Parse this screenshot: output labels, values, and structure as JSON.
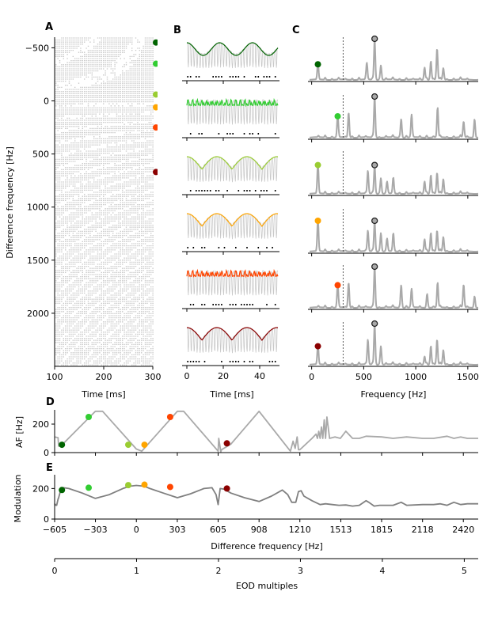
{
  "figure": {
    "panels": [
      "A",
      "B",
      "C",
      "D",
      "E"
    ]
  },
  "colors": {
    "cells": [
      "#006400",
      "#32cd32",
      "#9acd32",
      "#ffa500",
      "#ff4500",
      "#8b0000"
    ],
    "trace_gray": "#a9a9a9",
    "modulation_gray": "#808080",
    "raster_gray": "#c8c8c8",
    "peak_marker_fill": "#a9a9a9"
  },
  "chart_data": [
    {
      "id": "A",
      "type": "scatter",
      "title": "",
      "panel_label": "A",
      "xlabel": "Time [ms]",
      "ylabel": "Difference frequency [Hz]",
      "xlim": [
        100,
        300
      ],
      "ylim": [
        2500,
        -600
      ],
      "xticks": [
        "100",
        "200",
        "300"
      ],
      "xtick_values": [
        100,
        200,
        300
      ],
      "yticks": [
        "−500",
        "0",
        "500",
        "1000",
        "1500",
        "2000"
      ],
      "ytick_values": [
        -500,
        0,
        500,
        1000,
        1500,
        2000
      ],
      "description": "Spike raster across difference frequencies",
      "cell_markers_dF": [
        -550,
        -350,
        -60,
        60,
        250,
        670
      ]
    },
    {
      "id": "B",
      "type": "line",
      "panel_label": "B",
      "xlabel": "Time [ms]",
      "xlim": [
        0,
        50
      ],
      "xticks": [
        "0",
        "20",
        "40"
      ],
      "xtick_values": [
        0,
        20,
        40
      ],
      "rows": [
        {
          "cell": 0,
          "beat_period_ms": 18,
          "envelope_shape": "sine"
        },
        {
          "cell": 1,
          "beat_period_ms": 3.8,
          "envelope_shape": "jagged"
        },
        {
          "cell": 2,
          "beat_period_ms": 16.5,
          "envelope_shape": "scalloped"
        },
        {
          "cell": 3,
          "beat_period_ms": 16.5,
          "envelope_shape": "scalloped"
        },
        {
          "cell": 4,
          "beat_period_ms": 3.8,
          "envelope_shape": "jagged"
        },
        {
          "cell": 5,
          "beat_period_ms": 16.5,
          "envelope_shape": "scalloped"
        }
      ]
    },
    {
      "id": "C",
      "type": "line",
      "panel_label": "C",
      "xlabel": "Frequency [Hz]",
      "xlim": [
        -20,
        1600
      ],
      "xticks": [
        "0",
        "500",
        "1000",
        "1500"
      ],
      "xtick_values": [
        0,
        500,
        1000,
        1500
      ],
      "nyquist_line_hz": 302,
      "eod_peak_hz": 605,
      "rows": [
        {
          "cell": 0,
          "af_hz": 60,
          "af_height": 0.38,
          "peaks": [
            [
              60,
              0.38
            ],
            [
              530,
              0.4
            ],
            [
              605,
              1.0
            ],
            [
              665,
              0.35
            ],
            [
              1085,
              0.3
            ],
            [
              1145,
              0.45
            ],
            [
              1205,
              0.75
            ],
            [
              1265,
              0.28
            ]
          ]
        },
        {
          "cell": 1,
          "af_hz": 250,
          "af_height": 0.52,
          "peaks": [
            [
              250,
              0.52
            ],
            [
              355,
              0.6
            ],
            [
              605,
              1.0
            ],
            [
              860,
              0.45
            ],
            [
              960,
              0.55
            ],
            [
              1210,
              0.72
            ],
            [
              1460,
              0.38
            ],
            [
              1565,
              0.45
            ]
          ]
        },
        {
          "cell": 2,
          "af_hz": 60,
          "af_height": 0.7,
          "peaks": [
            [
              60,
              0.7
            ],
            [
              540,
              0.55
            ],
            [
              605,
              0.7
            ],
            [
              665,
              0.38
            ],
            [
              725,
              0.28
            ],
            [
              785,
              0.35
            ],
            [
              1085,
              0.3
            ],
            [
              1145,
              0.45
            ],
            [
              1205,
              0.5
            ],
            [
              1265,
              0.35
            ]
          ]
        },
        {
          "cell": 3,
          "af_hz": 60,
          "af_height": 0.75,
          "peaks": [
            [
              60,
              0.75
            ],
            [
              540,
              0.5
            ],
            [
              605,
              0.75
            ],
            [
              665,
              0.45
            ],
            [
              725,
              0.3
            ],
            [
              785,
              0.4
            ],
            [
              1085,
              0.3
            ],
            [
              1145,
              0.45
            ],
            [
              1205,
              0.5
            ],
            [
              1265,
              0.35
            ]
          ]
        },
        {
          "cell": 4,
          "af_hz": 250,
          "af_height": 0.55,
          "peaks": [
            [
              250,
              0.55
            ],
            [
              355,
              0.6
            ],
            [
              605,
              1.0
            ],
            [
              860,
              0.55
            ],
            [
              960,
              0.45
            ],
            [
              1110,
              0.3
            ],
            [
              1210,
              0.6
            ],
            [
              1460,
              0.55
            ],
            [
              1565,
              0.28
            ]
          ]
        },
        {
          "cell": 5,
          "af_hz": 60,
          "af_height": 0.45,
          "peaks": [
            [
              60,
              0.45
            ],
            [
              540,
              0.6
            ],
            [
              605,
              1.0
            ],
            [
              665,
              0.45
            ],
            [
              1085,
              0.2
            ],
            [
              1145,
              0.45
            ],
            [
              1205,
              0.6
            ],
            [
              1265,
              0.35
            ]
          ]
        }
      ]
    },
    {
      "id": "D",
      "type": "line",
      "panel_label": "D",
      "ylabel": "AF [Hz]",
      "xlim": [
        -605,
        2530
      ],
      "ylim": [
        0,
        300
      ],
      "yticks": [
        "0",
        "200"
      ],
      "ytick_values": [
        0,
        200
      ],
      "xtick_values": [
        -605,
        -303,
        0,
        303,
        605,
        908,
        1210,
        1513,
        1815,
        2118,
        2420
      ],
      "series": [
        {
          "name": "AF",
          "x": [
            -605,
            -580,
            -575,
            -560,
            -303,
            -250,
            0,
            40,
            303,
            350,
            605,
            610,
            625,
            630,
            700,
            908,
            1140,
            1160,
            1175,
            1190,
            1200,
            1210,
            1300,
            1330,
            1340,
            1350,
            1360,
            1370,
            1380,
            1390,
            1400,
            1410,
            1430,
            1470,
            1510,
            1550,
            1600,
            1650,
            1700,
            1815,
            1900,
            2000,
            2118,
            2200,
            2300,
            2350,
            2400,
            2450,
            2530
          ],
          "y": [
            110,
            105,
            45,
            45,
            290,
            290,
            25,
            10,
            290,
            290,
            10,
            100,
            5,
            20,
            60,
            290,
            10,
            80,
            30,
            110,
            20,
            20,
            100,
            130,
            100,
            150,
            100,
            180,
            100,
            230,
            100,
            250,
            100,
            110,
            100,
            150,
            100,
            100,
            115,
            110,
            100,
            110,
            100,
            100,
            115,
            100,
            110,
            100,
            100
          ]
        }
      ],
      "markers": [
        {
          "cell": 0,
          "x": -551,
          "y": 55
        },
        {
          "cell": 1,
          "x": -353,
          "y": 250
        },
        {
          "cell": 2,
          "x": -60,
          "y": 55
        },
        {
          "cell": 3,
          "x": 60,
          "y": 55
        },
        {
          "cell": 4,
          "x": 250,
          "y": 250
        },
        {
          "cell": 5,
          "x": 670,
          "y": 65
        }
      ]
    },
    {
      "id": "E",
      "type": "line",
      "panel_label": "E",
      "ylabel": "Modulation",
      "xlabel": "Difference frequency [Hz]",
      "xlim": [
        -605,
        2530
      ],
      "ylim": [
        0,
        290
      ],
      "yticks": [
        "0",
        "200"
      ],
      "ytick_values": [
        0,
        200
      ],
      "xticks": [
        "−605",
        "−303",
        "0",
        "303",
        "605",
        "908",
        "1210",
        "1513",
        "1815",
        "2118",
        "2420"
      ],
      "xtick_values": [
        -605,
        -303,
        0,
        303,
        605,
        908,
        1210,
        1513,
        1815,
        2118,
        2420
      ],
      "series": [
        {
          "name": "Modulation",
          "x": [
            -605,
            -595,
            -590,
            -580,
            -575,
            -560,
            -540,
            -500,
            -400,
            -303,
            -200,
            -100,
            -50,
            0,
            60,
            100,
            200,
            303,
            400,
            500,
            560,
            590,
            605,
            620,
            650,
            700,
            800,
            908,
            1000,
            1080,
            1120,
            1150,
            1180,
            1200,
            1220,
            1240,
            1300,
            1360,
            1400,
            1450,
            1500,
            1550,
            1600,
            1650,
            1700,
            1720,
            1760,
            1800,
            1900,
            1960,
            2000,
            2118,
            2200,
            2250,
            2300,
            2350,
            2400,
            2450,
            2530
          ],
          "y": [
            100,
            90,
            90,
            130,
            140,
            190,
            205,
            200,
            170,
            135,
            160,
            200,
            215,
            220,
            215,
            200,
            170,
            140,
            165,
            200,
            205,
            160,
            95,
            200,
            195,
            170,
            140,
            115,
            150,
            190,
            160,
            110,
            110,
            180,
            185,
            150,
            120,
            95,
            100,
            95,
            90,
            92,
            85,
            90,
            120,
            110,
            85,
            90,
            90,
            110,
            90,
            95,
            95,
            100,
            90,
            110,
            95,
            100,
            100
          ]
        }
      ],
      "markers": [
        {
          "cell": 0,
          "x": -551,
          "y": 190
        },
        {
          "cell": 1,
          "x": -353,
          "y": 205
        },
        {
          "cell": 2,
          "x": -60,
          "y": 222
        },
        {
          "cell": 3,
          "x": 60,
          "y": 225
        },
        {
          "cell": 4,
          "x": 250,
          "y": 210
        },
        {
          "cell": 5,
          "x": 670,
          "y": 200
        }
      ]
    },
    {
      "id": "EOD-axis",
      "type": "line",
      "xlabel": "EOD multiples",
      "xlim": [
        0,
        5.17
      ],
      "xticks": [
        "0",
        "1",
        "2",
        "3",
        "4",
        "5"
      ],
      "xtick_values": [
        0,
        1,
        2,
        3,
        4,
        5
      ]
    }
  ]
}
